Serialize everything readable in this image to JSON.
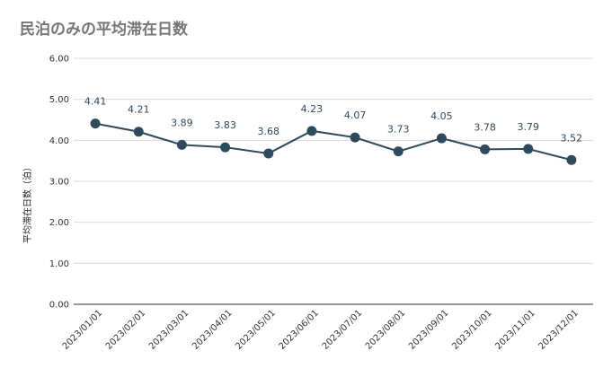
{
  "chart_data": {
    "type": "line",
    "title": "民泊のみの平均滞在日数",
    "xlabel": "",
    "ylabel": "平均滞在日数（泊）",
    "categories": [
      "2023/01/01",
      "2023/02/01",
      "2023/03/01",
      "2023/04/01",
      "2023/05/01",
      "2023/06/01",
      "2023/07/01",
      "2023/08/01",
      "2023/09/01",
      "2023/10/01",
      "2023/11/01",
      "2023/12/01"
    ],
    "values": [
      4.41,
      4.21,
      3.89,
      3.83,
      3.68,
      4.23,
      4.07,
      3.73,
      4.05,
      3.78,
      3.79,
      3.52
    ],
    "data_labels": [
      "4.41",
      "4.21",
      "3.89",
      "3.83",
      "3.68",
      "4.23",
      "4.07",
      "3.73",
      "4.05",
      "3.78",
      "3.79",
      "3.52"
    ],
    "y_ticks": [
      "0.00",
      "1.00",
      "2.00",
      "3.00",
      "4.00",
      "5.00",
      "6.00"
    ],
    "ylim": [
      0,
      6
    ],
    "grid": true,
    "legend": "none",
    "colors": {
      "series": "#2d4b5c",
      "grid": "#d9d9d9",
      "title": "#757575"
    }
  }
}
